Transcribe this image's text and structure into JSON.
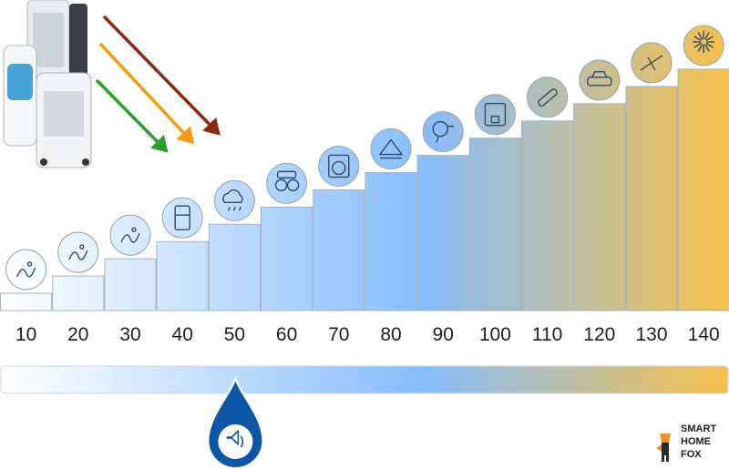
{
  "chart_data": {
    "type": "bar",
    "categories": [
      "10",
      "20",
      "30",
      "40",
      "50",
      "60",
      "70",
      "80",
      "90",
      "100",
      "110",
      "120",
      "130",
      "140"
    ],
    "values": [
      10,
      20,
      30,
      40,
      50,
      60,
      70,
      80,
      90,
      100,
      110,
      120,
      130,
      140
    ],
    "icons": [
      "breath-icon",
      "rustling-leaves-icon",
      "whisper-icon",
      "refrigerator-icon",
      "rain-icon",
      "conversation-icon",
      "washing-machine-icon",
      "piano-icon",
      "hair-dryer-icon",
      "coffee-machine-icon",
      "chainsaw-icon",
      "car-icon",
      "jet-icon",
      "fireworks-icon"
    ],
    "highlight_value": 50,
    "highlight_icon": "speaker-icon",
    "arrow_targets": [
      40,
      45,
      50
    ],
    "arrow_colors": [
      "#2ca02c",
      "#f39c12",
      "#8b2a0e"
    ],
    "gradient_colors": [
      "#ffffff",
      "#86bdfd",
      "#f7c04a"
    ],
    "brand": {
      "line1": "SMART",
      "line2": "HOME",
      "line3": "FOX"
    }
  }
}
